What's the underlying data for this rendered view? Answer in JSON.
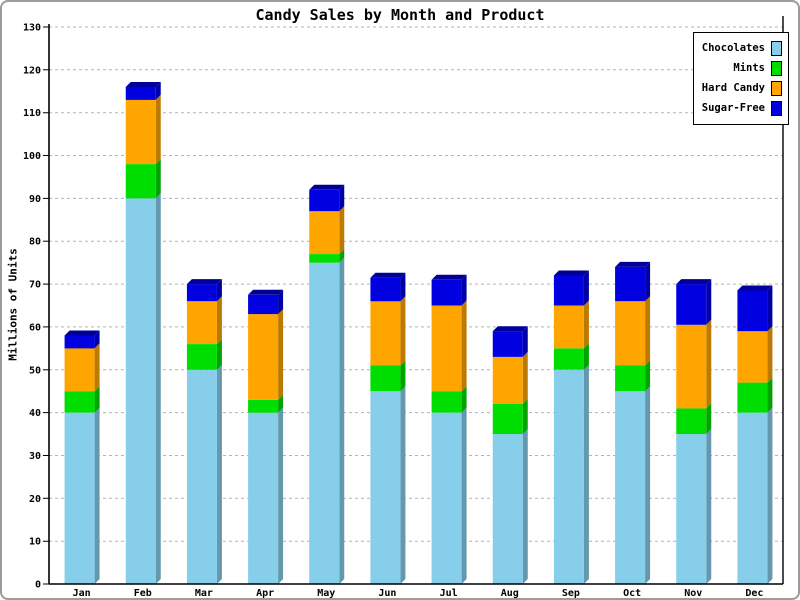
{
  "chart_data": {
    "type": "bar",
    "variant": "stacked-3d",
    "title": "Candy Sales by Month and Product",
    "xlabel": "",
    "ylabel": "Millions of Units",
    "categories": [
      "Jan",
      "Feb",
      "Mar",
      "Apr",
      "May",
      "Jun",
      "Jul",
      "Aug",
      "Sep",
      "Oct",
      "Nov",
      "Dec"
    ],
    "series": [
      {
        "name": "Chocolates",
        "color": "#87CEEB",
        "values": [
          40,
          90,
          50,
          40,
          75,
          45,
          40,
          35,
          50,
          45,
          35,
          40
        ]
      },
      {
        "name": "Mints",
        "color": "#00DD00",
        "values": [
          5,
          8,
          6,
          3,
          2,
          6,
          5,
          7,
          5,
          6,
          6,
          7
        ]
      },
      {
        "name": "Hard Candy",
        "color": "#FFA500",
        "values": [
          10,
          15,
          10,
          20,
          10,
          15,
          20,
          11,
          10,
          15,
          19.5,
          12
        ]
      },
      {
        "name": "Sugar-Free",
        "color": "#0000E0",
        "values": [
          3,
          3,
          4,
          4.5,
          5,
          5.5,
          6,
          6,
          7,
          8,
          9.5,
          9.5
        ]
      }
    ],
    "stack_totals": [
      58,
      116,
      70,
      67.5,
      92,
      71.5,
      71,
      59,
      72,
      74,
      70,
      68.5
    ],
    "ylim": [
      0,
      130
    ],
    "ytick_step": 10,
    "ytick_labels": [
      "0",
      "10",
      "20",
      "30",
      "40",
      "50",
      "60",
      "70",
      "80",
      "90",
      "100",
      "110",
      "120",
      "130"
    ],
    "grid": "dashed-horizontal",
    "grid_color": "#b3b3b3",
    "axis_color": "#000000",
    "background_color": "#ffffff",
    "legend_position": "top-right",
    "legend_entries": [
      "Chocolates",
      "Mints",
      "Hard Candy",
      "Sugar-Free"
    ]
  }
}
